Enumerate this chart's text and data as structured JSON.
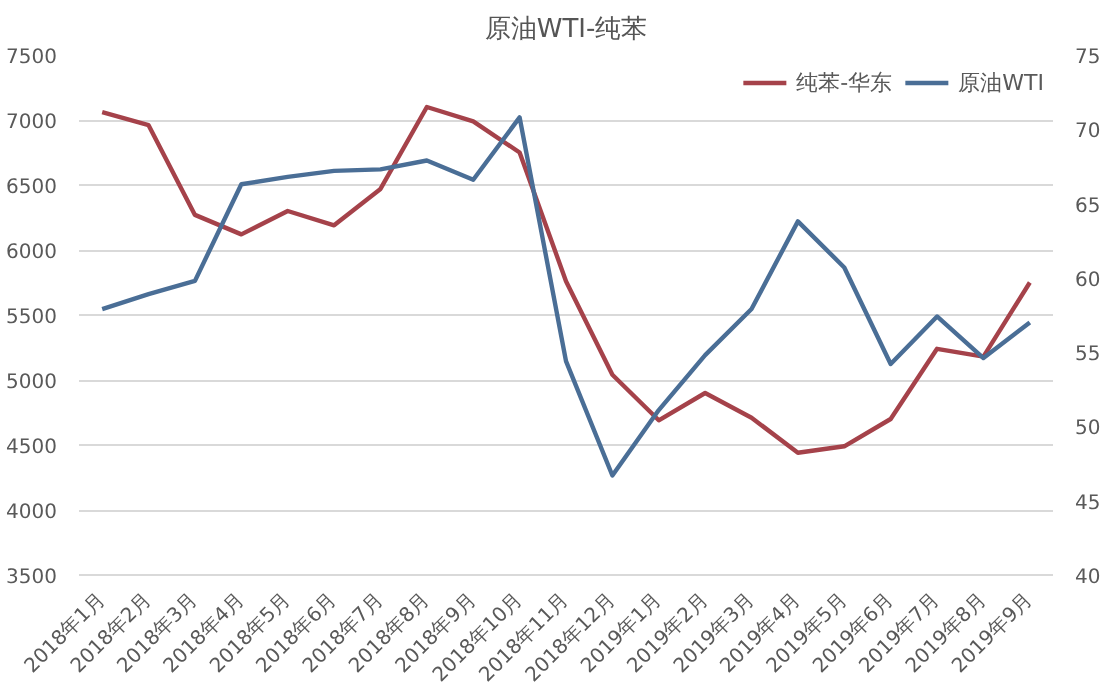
{
  "chart_data": {
    "type": "line",
    "title": "原油WTI-纯苯",
    "categories": [
      "2018年1月",
      "2018年2月",
      "2018年3月",
      "2018年4月",
      "2018年5月",
      "2018年6月",
      "2018年7月",
      "2018年8月",
      "2018年9月",
      "2018年10月",
      "2018年11月",
      "2018年12月",
      "2019年1月",
      "2019年2月",
      "2019年3月",
      "2019年4月",
      "2019年5月",
      "2019年6月",
      "2019年7月",
      "2019年8月",
      "2019年9月"
    ],
    "series": [
      {
        "name": "纯苯-华东",
        "color": "#a5424a",
        "values": [
          7060,
          6960,
          6270,
          6120,
          6300,
          6190,
          6470,
          7100,
          6990,
          6750,
          5760,
          5040,
          4690,
          4900,
          4710,
          4440,
          4490,
          4700,
          5240,
          5180,
          5750
        ]
      },
      {
        "name": "原油WTI",
        "color": "#4a6e96",
        "axis": "y2",
        "values": [
          57.9,
          58.9,
          59.8,
          66.3,
          66.8,
          67.2,
          67.3,
          67.9,
          66.6,
          70.8,
          54.4,
          46.7,
          51.1,
          54.8,
          57.9,
          63.8,
          60.7,
          54.2,
          57.4,
          54.6,
          57.0
        ]
      }
    ],
    "ylim": [
      3500,
      7500
    ],
    "yticks": [
      3500,
      4000,
      4500,
      5000,
      5500,
      6000,
      6500,
      7000,
      7500
    ],
    "y2lim": [
      40,
      75
    ],
    "y2ticks": [
      40,
      45,
      50,
      55,
      60,
      65,
      70,
      75
    ],
    "grid": "y",
    "legend": "top right",
    "marker": "none",
    "line_style": "solid"
  }
}
